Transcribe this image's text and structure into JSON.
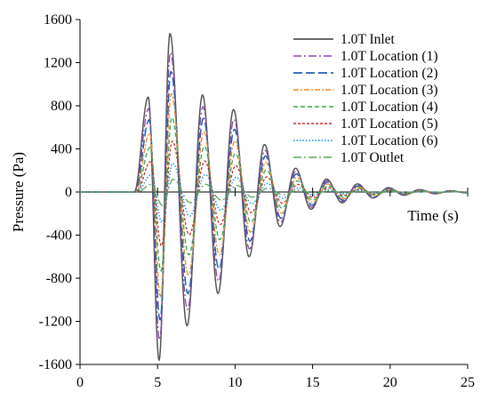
{
  "chart_data": {
    "type": "line",
    "title": "",
    "xlabel": "Time (s)",
    "ylabel": "Pressure (Pa)",
    "xlim": [
      0,
      25
    ],
    "ylim": [
      -1600,
      1600
    ],
    "xticks": [
      0,
      5,
      10,
      15,
      20,
      25
    ],
    "yticks": [
      -1600,
      -1200,
      -800,
      -400,
      0,
      400,
      800,
      1200,
      1600
    ],
    "grid": false,
    "legend_position": "top-right",
    "signal": {
      "start_time": 3.5,
      "period": 2.1,
      "decay": 0.19,
      "inlet_peaks": [
        {
          "x": 4.4,
          "y": 880
        },
        {
          "x": 5.1,
          "y": -1560
        },
        {
          "x": 5.8,
          "y": 1470
        },
        {
          "x": 6.9,
          "y": -1240
        },
        {
          "x": 7.9,
          "y": 900
        },
        {
          "x": 8.9,
          "y": -940
        },
        {
          "x": 9.9,
          "y": 765
        },
        {
          "x": 10.9,
          "y": -600
        },
        {
          "x": 11.9,
          "y": 440
        },
        {
          "x": 12.9,
          "y": -320
        },
        {
          "x": 13.9,
          "y": 220
        },
        {
          "x": 14.9,
          "y": -160
        },
        {
          "x": 15.9,
          "y": 120
        },
        {
          "x": 16.9,
          "y": -100
        },
        {
          "x": 17.9,
          "y": 75
        },
        {
          "x": 18.9,
          "y": -55
        },
        {
          "x": 19.9,
          "y": 40
        },
        {
          "x": 20.9,
          "y": -30
        },
        {
          "x": 21.9,
          "y": 22
        },
        {
          "x": 22.9,
          "y": -16
        },
        {
          "x": 23.9,
          "y": 12
        },
        {
          "x": 24.9,
          "y": -8
        }
      ]
    },
    "series": [
      {
        "name": "1.0T Inlet",
        "scale": 1.0,
        "shift": 0.0,
        "color": "#555555",
        "dash": "",
        "width": 1.5
      },
      {
        "name": "1.0T Location (1)",
        "scale": 0.88,
        "shift": 0.03,
        "color": "#8e44ad",
        "dash": "9,3,2,3",
        "width": 1.3
      },
      {
        "name": "1.0T Location (2)",
        "scale": 0.76,
        "shift": 0.06,
        "color": "#1f5fb4",
        "dash": "10,4",
        "width": 1.5
      },
      {
        "name": "1.0T Location (3)",
        "scale": 0.62,
        "shift": 0.09,
        "color": "#f08c1a",
        "dash": "6,2,2,2",
        "width": 1.3
      },
      {
        "name": "1.0T Location (4)",
        "scale": 0.47,
        "shift": 0.12,
        "color": "#2ea84a",
        "dash": "5,3",
        "width": 1.3
      },
      {
        "name": "1.0T Location (5)",
        "scale": 0.32,
        "shift": 0.15,
        "color": "#d62728",
        "dash": "3,2",
        "width": 1.3
      },
      {
        "name": "1.0T Location (6)",
        "scale": 0.18,
        "shift": 0.18,
        "color": "#1ea0e6",
        "dash": "1.5,2",
        "width": 1.6
      },
      {
        "name": "1.0T Outlet",
        "scale": 0.08,
        "shift": 0.21,
        "color": "#5aa55a",
        "dash": "9,3,2,3",
        "width": 1.3
      }
    ]
  }
}
